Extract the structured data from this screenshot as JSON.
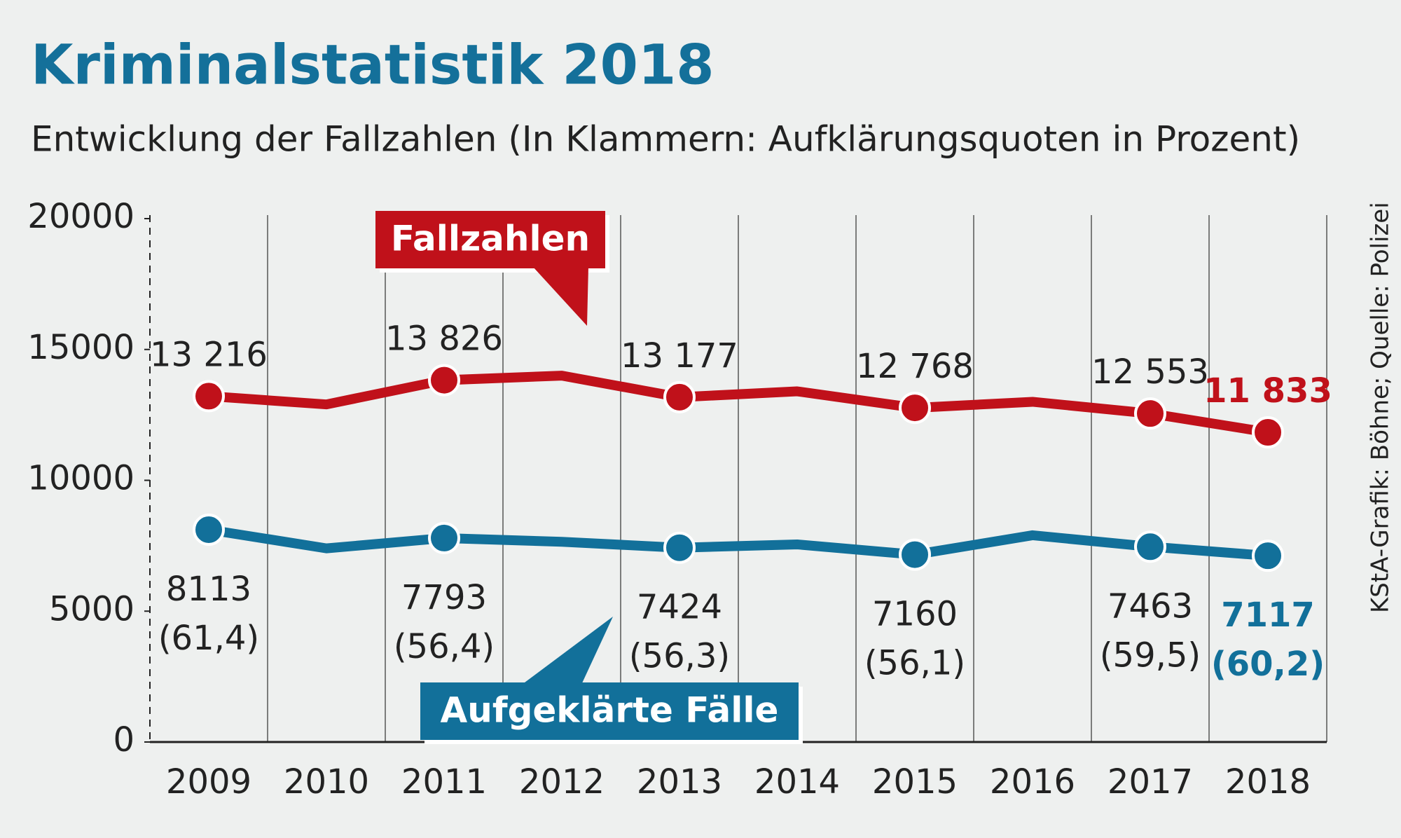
{
  "chart_data": {
    "type": "line",
    "title": "Kriminalstatistik 2018",
    "subtitle": "Entwicklung der Fallzahlen (In Klammern: Aufklärungsquoten in Prozent)",
    "source": "KStA-Grafik: Böhne; Quelle: Polizei",
    "categories": [
      "2009",
      "2010",
      "2011",
      "2012",
      "2013",
      "2014",
      "2015",
      "2016",
      "2017",
      "2018"
    ],
    "series": [
      {
        "name": "Fallzahlen",
        "color": "#c0111a",
        "values": [
          13216,
          12900,
          13826,
          14000,
          13177,
          13400,
          12768,
          13000,
          12553,
          11833
        ],
        "value_labels": [
          "13 216",
          null,
          "13 826",
          null,
          "13 177",
          null,
          "12 768",
          null,
          "12 553",
          "11 833"
        ]
      },
      {
        "name": "Aufgeklärte Fälle",
        "color": "#12709a",
        "values": [
          8113,
          7400,
          7793,
          7650,
          7424,
          7550,
          7160,
          7900,
          7463,
          7117
        ],
        "value_labels": [
          "8113",
          null,
          "7793",
          null,
          "7424",
          null,
          "7160",
          null,
          "7463",
          "7117"
        ],
        "quote_labels": [
          "(61,4)",
          null,
          "(56,4)",
          null,
          "(56,3)",
          null,
          "(56,1)",
          null,
          "(59,5)",
          "(60,2)"
        ]
      }
    ],
    "ylim": [
      0,
      20000
    ],
    "yticks": [
      0,
      5000,
      10000,
      15000,
      20000
    ],
    "grid": true
  }
}
